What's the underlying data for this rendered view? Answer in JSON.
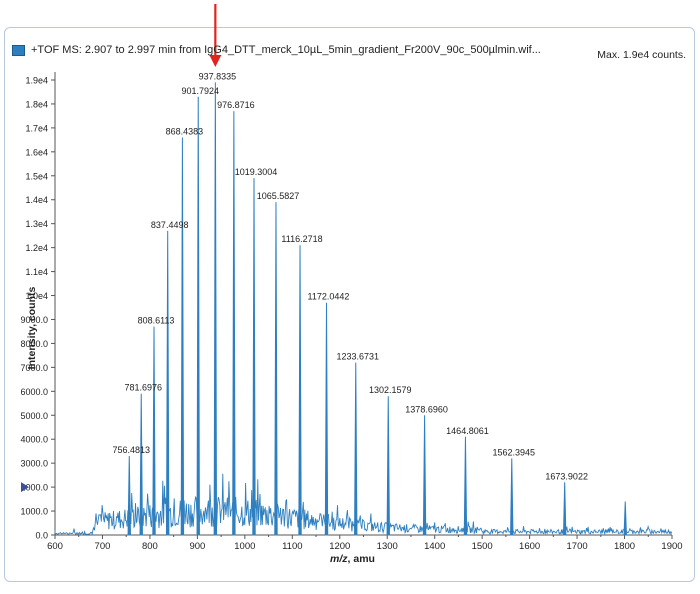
{
  "legend": {
    "label": "+TOF MS: 2.907 to 2.997 min from IgG4_DTT_merck_10µL_5min_gradient_Fr200V_90c_500µlmin.wif...",
    "color": "#2e7fc0"
  },
  "max_label": "Max. 1.9e4 counts.",
  "marker": {
    "color": "#e3231f",
    "x": 937.8335
  },
  "chart_data": {
    "type": "line",
    "title": "",
    "xlabel": "m/z, amu",
    "ylabel": "Intensity, counts",
    "xlim": [
      600,
      1900
    ],
    "ylim": [
      0,
      19000
    ],
    "x_ticks": [
      "600",
      "700",
      "800",
      "900",
      "1000",
      "1100",
      "1200",
      "1300",
      "1400",
      "1500",
      "1600",
      "1700",
      "1800",
      "1900"
    ],
    "y_ticks": [
      {
        "value": 0,
        "label": "0.0"
      },
      {
        "value": 1000,
        "label": "1000.0"
      },
      {
        "value": 2000,
        "label": "2000.0"
      },
      {
        "value": 3000,
        "label": "3000.0"
      },
      {
        "value": 4000,
        "label": "4000.0"
      },
      {
        "value": 5000,
        "label": "5000.0"
      },
      {
        "value": 6000,
        "label": "6000.0"
      },
      {
        "value": 7000,
        "label": "7000.0"
      },
      {
        "value": 8000,
        "label": "8000.0"
      },
      {
        "value": 9000,
        "label": "9000.0"
      },
      {
        "value": 10000,
        "label": "1.0e4"
      },
      {
        "value": 11000,
        "label": "1.1e4"
      },
      {
        "value": 12000,
        "label": "1.2e4"
      },
      {
        "value": 13000,
        "label": "1.3e4"
      },
      {
        "value": 14000,
        "label": "1.4e4"
      },
      {
        "value": 15000,
        "label": "1.5e4"
      },
      {
        "value": 16000,
        "label": "1.6e4"
      },
      {
        "value": 17000,
        "label": "1.7e4"
      },
      {
        "value": 18000,
        "label": "1.8e4"
      },
      {
        "value": 19000,
        "label": "1.9e4"
      }
    ],
    "threshold_marker": 2000,
    "peaks": [
      {
        "x": 756.4813,
        "y": 3300,
        "label": "756.4813"
      },
      {
        "x": 781.6976,
        "y": 5900,
        "label": "781.6976"
      },
      {
        "x": 808.6113,
        "y": 8700,
        "label": "808.6113"
      },
      {
        "x": 837.4498,
        "y": 12700,
        "label": "837.4498"
      },
      {
        "x": 868.4383,
        "y": 16600,
        "label": "868.4383"
      },
      {
        "x": 901.7924,
        "y": 18300,
        "label": "901.7924"
      },
      {
        "x": 937.8335,
        "y": 18900,
        "label": "937.8335"
      },
      {
        "x": 976.8716,
        "y": 17700,
        "label": "976.8716"
      },
      {
        "x": 1019.3004,
        "y": 14900,
        "label": "1019.3004"
      },
      {
        "x": 1065.5827,
        "y": 13900,
        "label": "1065.5827"
      },
      {
        "x": 1116.2718,
        "y": 12100,
        "label": "1116.2718"
      },
      {
        "x": 1172.0442,
        "y": 9700,
        "label": "1172.0442"
      },
      {
        "x": 1233.6731,
        "y": 7200,
        "label": "1233.6731"
      },
      {
        "x": 1302.1579,
        "y": 5800,
        "label": "1302.1579"
      },
      {
        "x": 1378.696,
        "y": 5000,
        "label": "1378.6960"
      },
      {
        "x": 1464.8061,
        "y": 4100,
        "label": "1464.8061"
      },
      {
        "x": 1562.3945,
        "y": 3200,
        "label": "1562.3945"
      },
      {
        "x": 1673.9022,
        "y": 2200,
        "label": "1673.9022"
      },
      {
        "x": 1801.5,
        "y": 1400,
        "label": ""
      }
    ],
    "grid": false,
    "legend_position": "top-left"
  }
}
